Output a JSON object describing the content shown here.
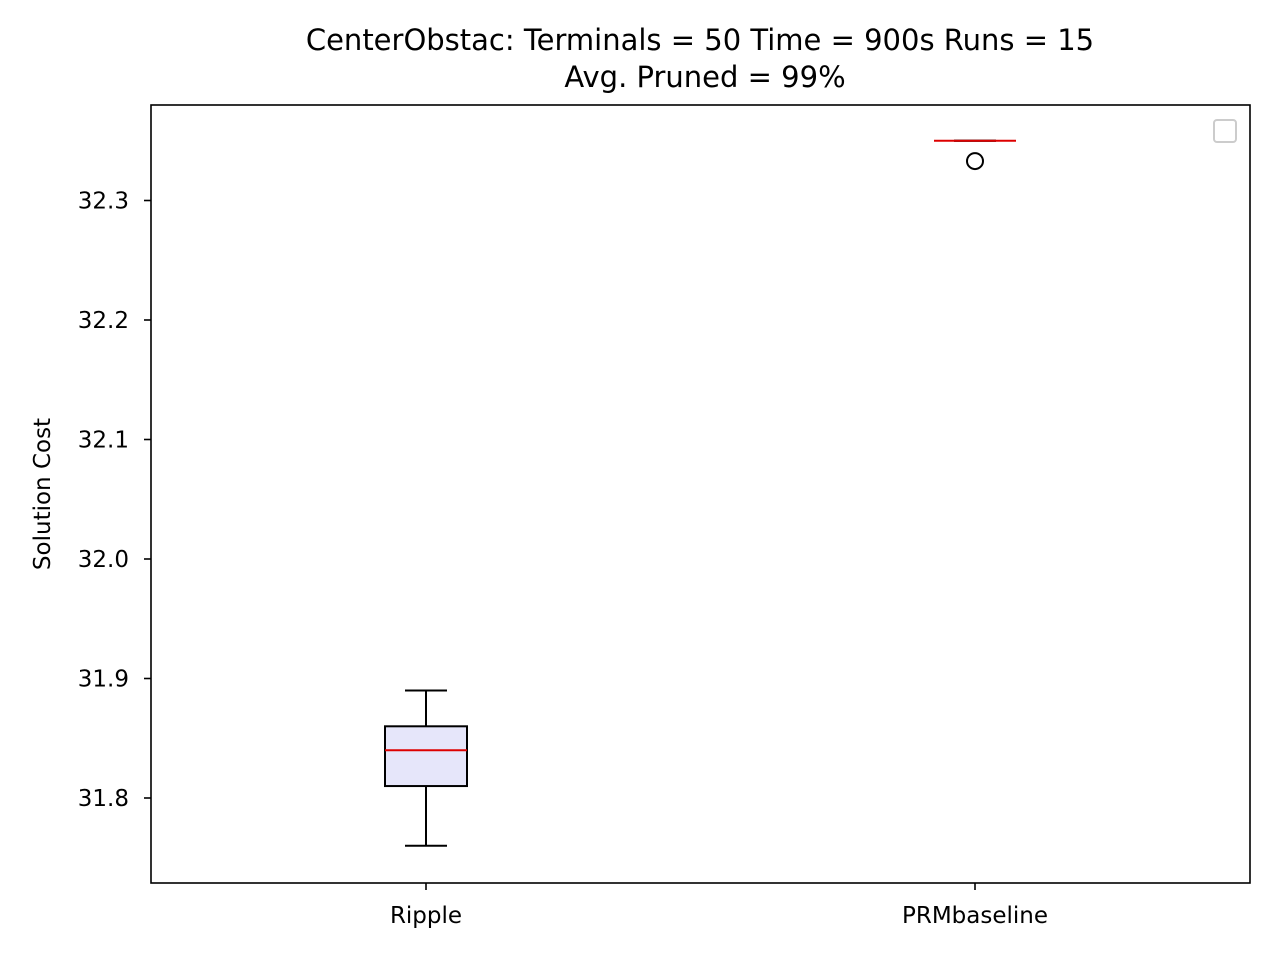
{
  "chart_data": {
    "type": "box",
    "title": "CenterObstac:  Terminals = 50  Time = 900s  Runs = 15",
    "subtitle": "Avg. Pruned = 99%",
    "xlabel": "",
    "ylabel": "Solution Cost",
    "categories": [
      "Ripple",
      "PRMbaseline"
    ],
    "ylim": [
      31.73,
      32.38
    ],
    "yticks": [
      31.8,
      31.9,
      32.0,
      32.1,
      32.2,
      32.3
    ],
    "ytick_labels": [
      "31.8",
      "31.9",
      "32.0",
      "32.1",
      "32.2",
      "32.3"
    ],
    "boxes": [
      {
        "category": "Ripple",
        "whisker_low": 31.76,
        "q1": 31.81,
        "median": 31.84,
        "q3": 31.86,
        "whisker_high": 31.89,
        "outliers": []
      },
      {
        "category": "PRMbaseline",
        "whisker_low": 32.35,
        "q1": 32.35,
        "median": 32.35,
        "q3": 32.35,
        "whisker_high": 32.35,
        "outliers": [
          32.333
        ]
      }
    ],
    "legend": {
      "placement": "top-right",
      "entries": []
    },
    "grid": false,
    "colors": {
      "box_fill": "#e6e6fa",
      "box_edge": "#000000",
      "median": "#dd0000",
      "whisker": "#000000",
      "outlier": "#000000",
      "legend_frame": "#cccccc"
    }
  }
}
